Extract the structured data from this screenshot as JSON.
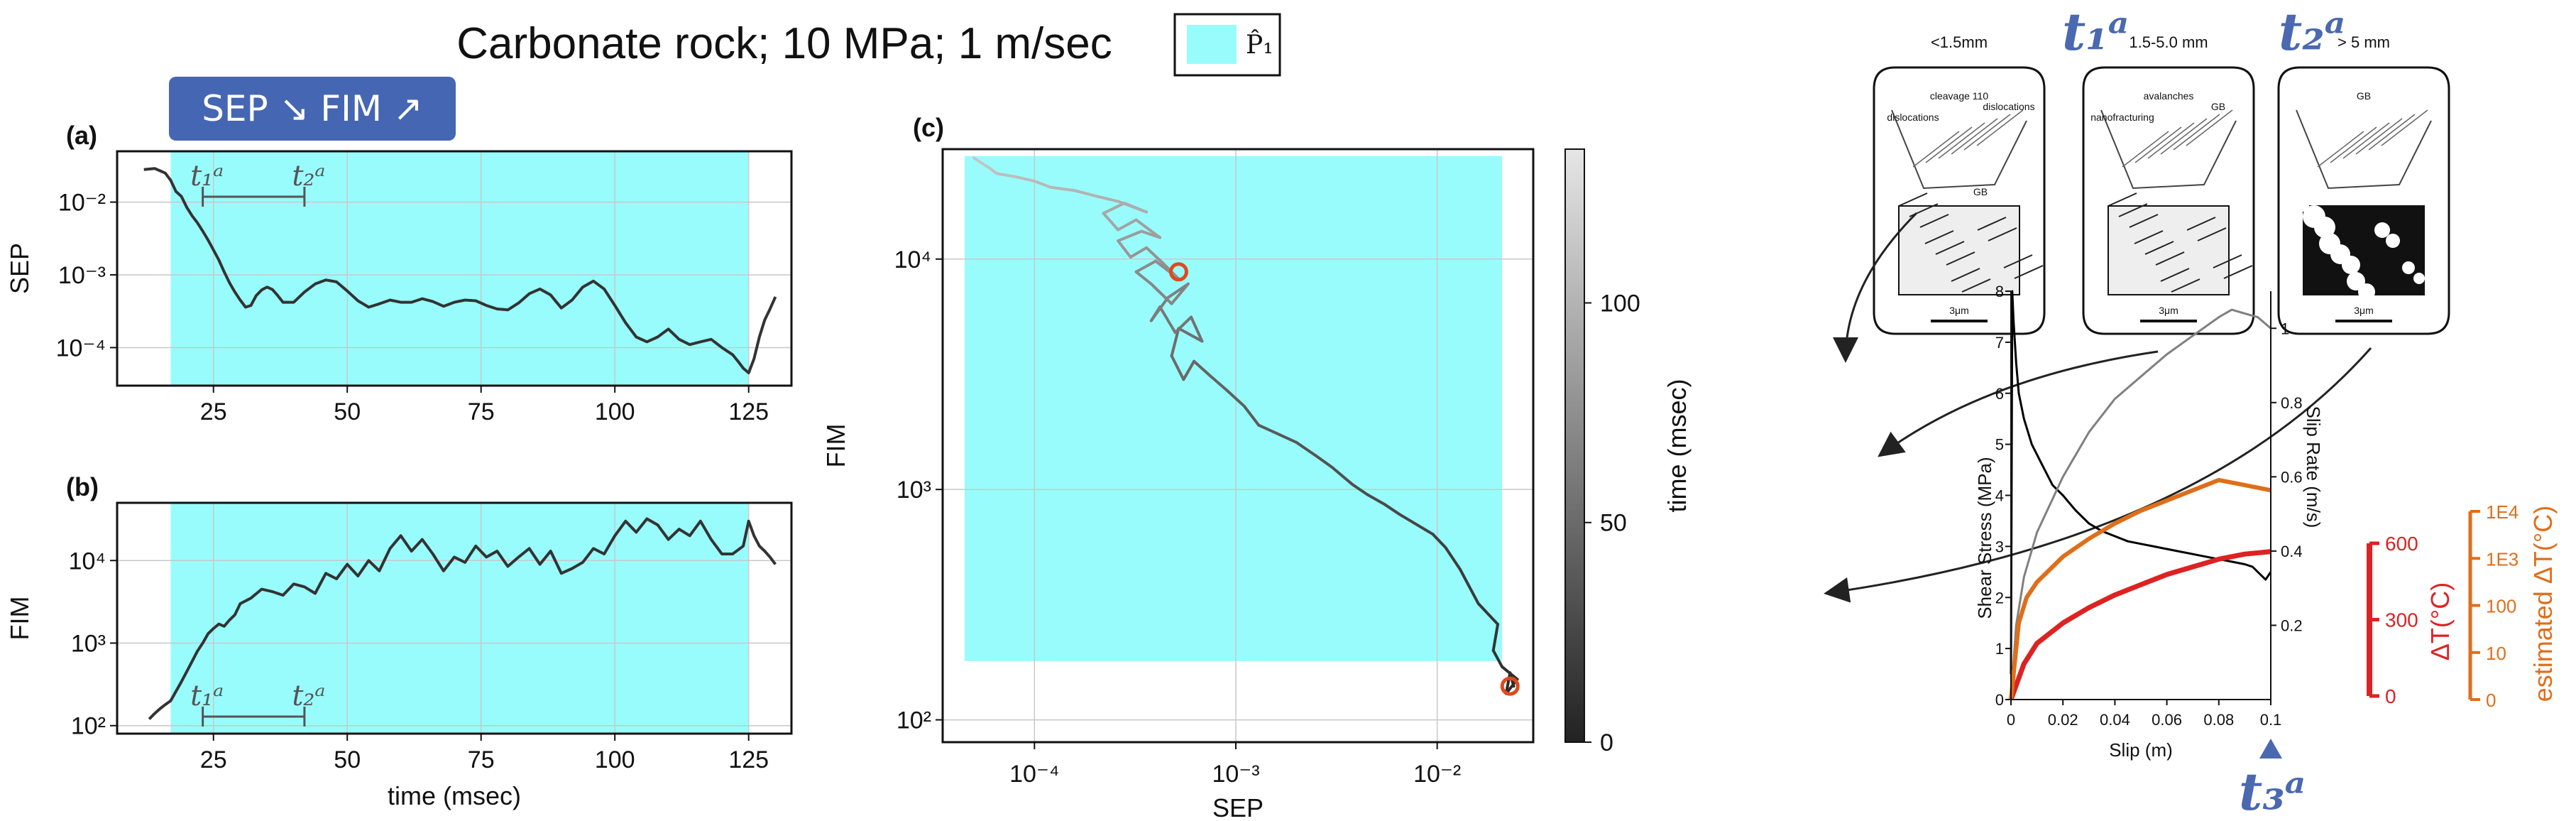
{
  "figure": {
    "title": "Carbonate rock; 10 MPa; 1 m/sec",
    "legend_label": "P̂₁",
    "badge_text": "SEP ↘ FIM ↗",
    "marker_t1": "t₁ᵃ",
    "marker_t2": "t₂ᵃ",
    "marker_t3": "t₃ᵃ"
  },
  "colors": {
    "shade": "#99fcfc",
    "badge": "#4566b2",
    "curve": "#333333",
    "marker_orange": "#e04a1c",
    "stress": "#000000",
    "slip_rate": "#808080",
    "dT_red": "#dd2222",
    "dT_est_orange": "#df6e1a",
    "t_marker_blue": "#4a69b0"
  },
  "chart_data": [
    {
      "id": "a",
      "panel_label": "(a)",
      "type": "line",
      "ylabel": "SEP",
      "xlabel": "",
      "log_y": true,
      "xlim": [
        7,
        133
      ],
      "ylim": [
        3e-05,
        0.05
      ],
      "xticks": [
        25,
        50,
        75,
        100,
        125
      ],
      "yticks": [
        0.0001,
        0.001,
        0.01
      ],
      "ytick_labels": [
        "10⁻⁴",
        "10⁻³",
        "10⁻²"
      ],
      "shaded_region": [
        17,
        125
      ],
      "interval": [
        23,
        42
      ],
      "grid": true,
      "series": [
        {
          "x": [
            12,
            14,
            15,
            16,
            17,
            18,
            19,
            20,
            21,
            22,
            23,
            24,
            25,
            26,
            27,
            28,
            29,
            30,
            31,
            32,
            33,
            34,
            35,
            36,
            37,
            38,
            40,
            42,
            44,
            46,
            48,
            50,
            52,
            54,
            56,
            58,
            60,
            62,
            64,
            66,
            68,
            70,
            72,
            74,
            76,
            78,
            80,
            82,
            84,
            86,
            88,
            90,
            92,
            94,
            96,
            98,
            100,
            102,
            104,
            106,
            108,
            110,
            112,
            114,
            116,
            118,
            120,
            122,
            123,
            124,
            125,
            126,
            127,
            128,
            129,
            130
          ],
          "y": [
            0.028,
            0.029,
            0.027,
            0.025,
            0.02,
            0.014,
            0.012,
            0.0085,
            0.0065,
            0.0052,
            0.004,
            0.003,
            0.0022,
            0.0016,
            0.0011,
            0.00078,
            0.00058,
            0.00045,
            0.00036,
            0.00038,
            0.00052,
            0.00062,
            0.00068,
            0.00063,
            0.00052,
            0.00042,
            0.00042,
            0.00058,
            0.00075,
            0.00085,
            0.0008,
            0.0006,
            0.00044,
            0.00036,
            0.0004,
            0.00045,
            0.00042,
            0.00042,
            0.00047,
            0.00043,
            0.00037,
            0.00042,
            0.00045,
            0.00044,
            0.00038,
            0.00034,
            0.00033,
            0.00041,
            0.00055,
            0.00064,
            0.00053,
            0.00035,
            0.00045,
            0.00068,
            0.00082,
            0.00064,
            0.00038,
            0.00022,
            0.00014,
            0.00012,
            0.00014,
            0.00018,
            0.00013,
            0.00011,
            0.00012,
            0.00013,
            0.0001,
            8e-05,
            6.5e-05,
            5.2e-05,
            4.5e-05,
            7e-05,
            0.00014,
            0.00024,
            0.00034,
            0.0005
          ]
        }
      ]
    },
    {
      "id": "b",
      "panel_label": "(b)",
      "type": "line",
      "ylabel": "FIM",
      "xlabel": "time (msec)",
      "log_y": true,
      "xlim": [
        7,
        133
      ],
      "ylim": [
        80,
        50000
      ],
      "xticks": [
        25,
        50,
        75,
        100,
        125
      ],
      "yticks": [
        100,
        1000,
        10000
      ],
      "ytick_labels": [
        "10²",
        "10³",
        "10⁴"
      ],
      "shaded_region": [
        17,
        125
      ],
      "interval": [
        23,
        42
      ],
      "grid": true,
      "series": [
        {
          "x": [
            13,
            14,
            15,
            16,
            17,
            18,
            19,
            20,
            21,
            22,
            23,
            24,
            25,
            26,
            27,
            28,
            29,
            30,
            32,
            34,
            36,
            38,
            40,
            42,
            44,
            46,
            48,
            50,
            52,
            54,
            56,
            58,
            60,
            62,
            64,
            66,
            68,
            70,
            72,
            74,
            76,
            78,
            80,
            82,
            84,
            86,
            88,
            90,
            92,
            94,
            96,
            98,
            100,
            102,
            104,
            106,
            108,
            110,
            112,
            114,
            116,
            118,
            120,
            122,
            124,
            125,
            126,
            127,
            128,
            129,
            130
          ],
          "y": [
            120,
            140,
            160,
            180,
            200,
            260,
            340,
            450,
            600,
            800,
            1000,
            1300,
            1500,
            1700,
            1600,
            1900,
            2200,
            3000,
            3500,
            4500,
            4200,
            3800,
            5200,
            4800,
            4000,
            7000,
            6000,
            9000,
            6500,
            10000,
            7500,
            14000,
            20000,
            13000,
            18000,
            12000,
            7500,
            11000,
            9500,
            15000,
            11000,
            13000,
            8500,
            11000,
            14000,
            9000,
            13000,
            7000,
            8000,
            9500,
            14000,
            12000,
            20000,
            30000,
            22000,
            32000,
            27000,
            18000,
            24000,
            20000,
            30000,
            18000,
            12000,
            12000,
            15000,
            30000,
            20000,
            15000,
            13000,
            11000,
            9000
          ]
        }
      ]
    },
    {
      "id": "c",
      "panel_label": "(c)",
      "type": "scatter",
      "xlabel": "SEP",
      "ylabel": "FIM",
      "log_x": true,
      "log_y": true,
      "xlim": [
        3.5e-05,
        0.03
      ],
      "ylim": [
        80,
        30000
      ],
      "xticks": [
        0.0001,
        0.001,
        0.01
      ],
      "xtick_labels": [
        "10⁻⁴",
        "10⁻³",
        "10⁻²"
      ],
      "yticks": [
        100,
        1000,
        10000
      ],
      "ytick_labels": [
        "10²",
        "10³",
        "10⁴"
      ],
      "shaded_region": {
        "x": [
          4.5e-05,
          0.021
        ],
        "y": [
          180,
          28000
        ]
      },
      "grid": true,
      "colorbar": {
        "label": "time (msec)",
        "range": [
          0,
          135
        ],
        "ticks": [
          0,
          50,
          100
        ]
      },
      "markers": [
        {
          "x": 0.023,
          "y": 140
        },
        {
          "x": 0.00052,
          "y": 8800
        }
      ],
      "series": [
        {
          "x": [
            0.024,
            0.023,
            0.022,
            0.025,
            0.021,
            0.019,
            0.02,
            0.016,
            0.013,
            0.011,
            0.0095,
            0.008,
            0.0065,
            0.0055,
            0.0045,
            0.0038,
            0.003,
            0.0025,
            0.002,
            0.0016,
            0.0013,
            0.0011,
            0.0009,
            0.00075,
            0.00062,
            0.00055,
            0.00048,
            0.00052,
            0.00068,
            0.0006,
            0.0005,
            0.00042,
            0.00038,
            0.00046,
            0.00058,
            0.00048,
            0.00038,
            0.00032,
            0.0004,
            0.00052,
            0.00044,
            0.00036,
            0.0003,
            0.00026,
            0.00034,
            0.00042,
            0.00032,
            0.00026,
            0.00022,
            0.00028,
            0.00036,
            0.00026,
            0.0002,
            0.00016,
            0.00012,
            0.0001,
            8e-05,
            6.5e-05,
            6e-05,
            5.5e-05,
            5e-05
          ],
          "y": [
            140,
            160,
            130,
            150,
            170,
            200,
            260,
            320,
            450,
            560,
            640,
            700,
            780,
            860,
            950,
            1050,
            1250,
            1400,
            1600,
            1750,
            1900,
            2300,
            2700,
            3100,
            3600,
            3000,
            3800,
            5000,
            4400,
            5600,
            4800,
            6200,
            5400,
            6800,
            7800,
            6400,
            7800,
            8800,
            9800,
            8200,
            9500,
            11200,
            10200,
            12000,
            13200,
            12400,
            14800,
            13400,
            15800,
            17500,
            16000,
            17800,
            18800,
            19800,
            20500,
            21800,
            22800,
            23500,
            24800,
            26000,
            27500
          ]
        }
      ]
    },
    {
      "id": "d",
      "type": "line",
      "xlabel": "Slip (m)",
      "ylabel": "Shear Stress (MPa)",
      "y2label": "Slip Rate (m/s)",
      "xlim": [
        0,
        0.1
      ],
      "ylim": [
        0,
        8
      ],
      "y2lim": [
        0,
        1.1
      ],
      "xticks": [
        0,
        0.02,
        0.04,
        0.06,
        0.08,
        0.1
      ],
      "yticks": [
        0,
        1,
        2,
        3,
        4,
        5,
        6,
        7,
        8
      ],
      "y2ticks": [
        0.2,
        0.4,
        0.6,
        0.8,
        1
      ],
      "extra_axes": [
        {
          "label": "ΔT(°C)",
          "ticks": [
            0,
            300,
            600
          ]
        },
        {
          "label": "estimated ΔT(°C)",
          "ticks": [
            "0",
            "10",
            "100",
            "1E3",
            "1E4"
          ]
        }
      ],
      "series": [
        {
          "name": "Shear Stress",
          "x": [
            0,
            0.0005,
            0.001,
            0.002,
            0.003,
            0.005,
            0.008,
            0.012,
            0.016,
            0.02,
            0.025,
            0.03,
            0.035,
            0.04,
            0.045,
            0.05,
            0.055,
            0.06,
            0.065,
            0.07,
            0.075,
            0.08,
            0.085,
            0.09,
            0.093,
            0.096,
            0.098,
            0.1
          ],
          "y": [
            0.5,
            8,
            7.4,
            6.6,
            6,
            5.5,
            5,
            4.6,
            4.2,
            4,
            3.7,
            3.45,
            3.3,
            3.2,
            3.1,
            3.05,
            3,
            2.95,
            2.9,
            2.85,
            2.8,
            2.75,
            2.7,
            2.65,
            2.6,
            2.45,
            2.35,
            2.5
          ]
        },
        {
          "name": "Slip Rate",
          "x": [
            0,
            0.002,
            0.005,
            0.01,
            0.02,
            0.03,
            0.04,
            0.05,
            0.06,
            0.07,
            0.08,
            0.085,
            0.09,
            0.095,
            0.1
          ],
          "y": [
            0,
            0.2,
            0.33,
            0.45,
            0.6,
            0.72,
            0.81,
            0.87,
            0.93,
            0.98,
            1.03,
            1.05,
            1.04,
            1.03,
            1.0
          ]
        },
        {
          "name": "ΔT",
          "x": [
            0,
            0.005,
            0.01,
            0.02,
            0.03,
            0.04,
            0.05,
            0.06,
            0.07,
            0.08,
            0.09,
            0.1
          ],
          "y": [
            0,
            0.7,
            1.1,
            1.5,
            1.8,
            2.05,
            2.25,
            2.45,
            2.6,
            2.75,
            2.85,
            2.9
          ]
        },
        {
          "name": "estimated ΔT",
          "x": [
            0,
            0.003,
            0.006,
            0.01,
            0.02,
            0.03,
            0.04,
            0.05,
            0.06,
            0.07,
            0.08,
            0.09,
            0.1
          ],
          "y": [
            0,
            1.5,
            2.0,
            2.3,
            2.8,
            3.15,
            3.45,
            3.7,
            3.9,
            4.1,
            4.3,
            4.2,
            4.1
          ]
        }
      ],
      "arrows_label": "",
      "insets": [
        {
          "size_label": "<1.5mm",
          "labels": [
            "cleavage 110",
            "dislocations",
            "dislocations",
            "GB"
          ],
          "scale": "3μm"
        },
        {
          "size_label": "1.5-5.0 mm",
          "labels": [
            "avalanches",
            "nanofracturing",
            "GB"
          ],
          "scale": "3μm"
        },
        {
          "size_label": "> 5 mm",
          "labels": [
            "GB"
          ],
          "scale": "3μm"
        }
      ]
    }
  ]
}
